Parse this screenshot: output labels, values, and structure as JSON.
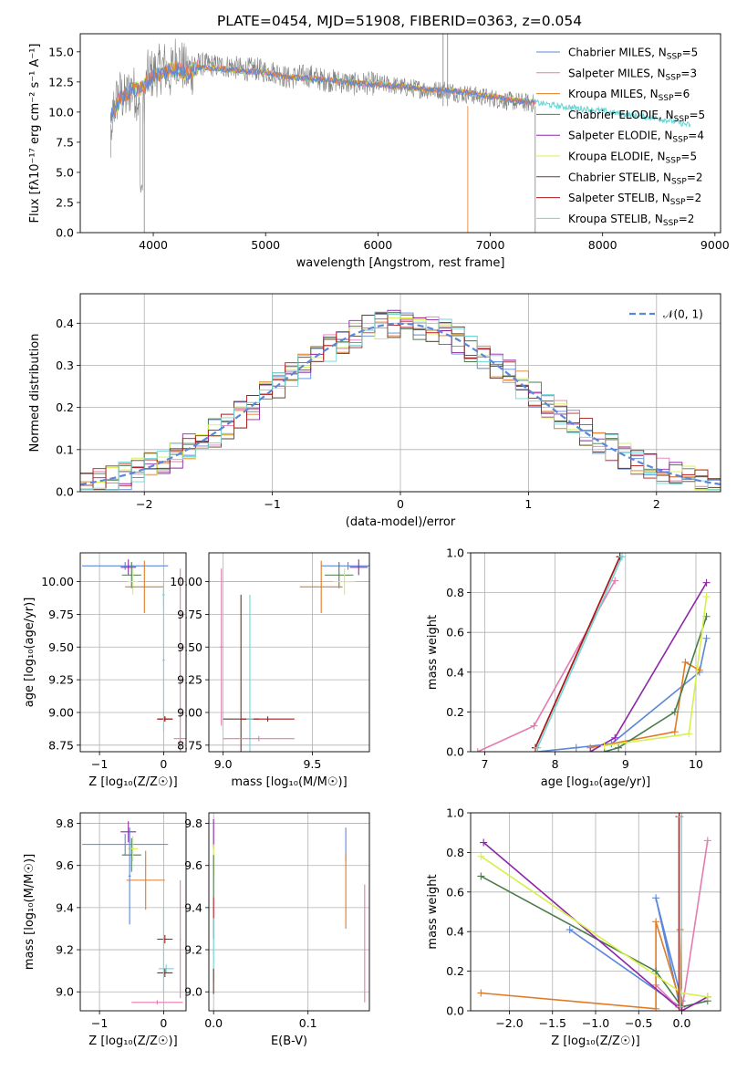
{
  "figure": {
    "title": "PLATE=0454, MJD=51908, FIBERID=0363, z=0.054"
  },
  "colors": {
    "chabrier_miles": "#5b87d9",
    "salpeter_miles": "#e77ab0",
    "kroupa_miles": "#e07b24",
    "chabrier_elodie": "#4c7c4c",
    "salpeter_elodie": "#8e26a8",
    "kroupa_elodie": "#d8f04a",
    "chabrier_stelib": "#5a4038",
    "salpeter_stelib": "#b01818",
    "kroupa_stelib": "#6fd6d6",
    "data": "#808080",
    "gaussian": "#5b87d9"
  },
  "chart_data": [
    {
      "id": "spectrum",
      "type": "line",
      "xlabel": "wavelength [Angstrom, rest frame]",
      "ylabel": "Flux [fλ10⁻¹⁷ erg cm⁻² s⁻¹ A⁻¹]",
      "xlim": [
        3350,
        9050
      ],
      "ylim": [
        0,
        16.5
      ],
      "xticks": [
        "4000",
        "5000",
        "6000",
        "7000",
        "8000",
        "9000"
      ],
      "yticks": [
        "0.0",
        "2.5",
        "5.0",
        "7.5",
        "10.0",
        "12.5",
        "15.0"
      ],
      "legend_position": "right",
      "legend": [
        {
          "label": "Chabrier MILES, N",
          "sub": "SSP",
          "suffix": "=5",
          "color_key": "chabrier_miles"
        },
        {
          "label": "Salpeter MILES, N",
          "sub": "SSP",
          "suffix": "=3",
          "color_key": "salpeter_miles"
        },
        {
          "label": "Kroupa MILES, N",
          "sub": "SSP",
          "suffix": "=6",
          "color_key": "kroupa_miles"
        },
        {
          "label": "Chabrier ELODIE, N",
          "sub": "SSP",
          "suffix": "=5",
          "color_key": "chabrier_elodie"
        },
        {
          "label": "Salpeter ELODIE, N",
          "sub": "SSP",
          "suffix": "=4",
          "color_key": "salpeter_elodie"
        },
        {
          "label": "Kroupa ELODIE, N",
          "sub": "SSP",
          "suffix": "=5",
          "color_key": "kroupa_elodie"
        },
        {
          "label": "Chabrier STELIB, N",
          "sub": "SSP",
          "suffix": "=2",
          "color_key": "chabrier_stelib"
        },
        {
          "label": "Salpeter STELIB, N",
          "sub": "SSP",
          "suffix": "=2",
          "color_key": "salpeter_stelib"
        },
        {
          "label": "Kroupa STELIB, N",
          "sub": "SSP",
          "suffix": "=2",
          "color_key": "kroupa_stelib"
        }
      ],
      "data_spectrum": {
        "x": [
          3620,
          3650,
          3700,
          3750,
          3800,
          3850,
          3900,
          3950,
          4000,
          4050,
          4100,
          4150,
          4200,
          4250,
          4300,
          4350,
          4400,
          4500,
          4600,
          4700,
          4800,
          4900,
          5000,
          5100,
          5200,
          5300,
          5400,
          5500,
          5600,
          5700,
          5800,
          5900,
          6000,
          6100,
          6200,
          6300,
          6400,
          6500,
          6600,
          6700,
          6800,
          6900,
          7000,
          7100,
          7200,
          7300,
          7400
        ],
        "y": [
          9.0,
          10.5,
          11.5,
          11.0,
          12.0,
          11.5,
          10.0,
          13.0,
          13.2,
          13.5,
          13.8,
          13.0,
          14.5,
          14.0,
          13.2,
          13.5,
          14.0,
          13.9,
          13.8,
          13.8,
          13.5,
          13.6,
          13.4,
          13.3,
          12.8,
          13.0,
          13.0,
          12.7,
          12.6,
          12.5,
          12.3,
          12.4,
          12.3,
          12.3,
          12.1,
          12.0,
          11.9,
          11.8,
          11.9,
          11.6,
          11.5,
          11.3,
          11.2,
          11.0,
          10.9,
          10.8,
          10.7
        ]
      },
      "model_curve": {
        "x": [
          3620,
          3700,
          3800,
          3900,
          4000,
          4100,
          4200,
          4300,
          4400,
          4600,
          4800,
          5000,
          5200,
          5400,
          5600,
          5800,
          6000,
          6200,
          6400,
          6600,
          6800,
          7000,
          7200,
          7400,
          7600,
          7800,
          8000,
          8200,
          8400,
          8600,
          8780
        ],
        "y": [
          9.5,
          11.0,
          11.8,
          12.0,
          13.0,
          13.3,
          13.6,
          13.2,
          13.7,
          13.6,
          13.4,
          13.3,
          12.9,
          12.8,
          12.6,
          12.4,
          12.3,
          12.1,
          11.9,
          11.8,
          11.6,
          11.3,
          11.0,
          10.8,
          10.5,
          10.3,
          10.1,
          9.8,
          9.6,
          9.3,
          8.9
        ]
      }
    },
    {
      "id": "residuals",
      "type": "line",
      "xlabel": "(data-model)/error",
      "ylabel": "Normed distribution",
      "xlim": [
        -2.5,
        2.5
      ],
      "ylim": [
        0,
        0.47
      ],
      "xticks": [
        "−2",
        "−1",
        "0",
        "1",
        "2"
      ],
      "yticks": [
        "0.0",
        "0.1",
        "0.2",
        "0.3",
        "0.4"
      ],
      "grid": true,
      "legend": "𝒩(0, 1)",
      "legend_position": "top-right"
    },
    {
      "id": "age_vs_Z",
      "type": "scatter",
      "xlabel": "Z [log₁₀(Z/Z☉)]",
      "ylabel": "age  [log₁₀(age/yr)]",
      "xlim": [
        -1.3,
        0.35
      ],
      "ylim": [
        8.7,
        10.22
      ],
      "xticks": [
        "−1",
        "0"
      ],
      "yticks": [
        "8.75",
        "9.00",
        "9.25",
        "9.50",
        "9.75",
        "10.00"
      ],
      "grid": true,
      "points": [
        {
          "x": -0.6,
          "y": 10.12,
          "xerr": 0.67,
          "yerr": 0.03,
          "color_key": "chabrier_miles"
        },
        {
          "x": -0.55,
          "y": 10.11,
          "xerr": 0.12,
          "yerr": 0.06,
          "color_key": "salpeter_elodie"
        },
        {
          "x": -0.5,
          "y": 10.05,
          "xerr": 0.15,
          "yerr": 0.1,
          "color_key": "chabrier_elodie"
        },
        {
          "x": -0.48,
          "y": 10.0,
          "xerr": 0.08,
          "yerr": 0.1,
          "color_key": "kroupa_elodie"
        },
        {
          "x": -0.3,
          "y": 9.96,
          "xerr": 0.3,
          "yerr": 0.2,
          "color_key": "kroupa_miles"
        },
        {
          "x": 0.0,
          "y": 9.9,
          "xerr": 0.02,
          "yerr": 0.1,
          "color_key": "kroupa_stelib"
        },
        {
          "x": 0.02,
          "y": 8.95,
          "xerr": 0.12,
          "yerr": 0.02,
          "color_key": "chabrier_stelib"
        },
        {
          "x": 0.02,
          "y": 8.95,
          "xerr": 0.12,
          "yerr": 0.02,
          "color_key": "salpeter_stelib"
        },
        {
          "x": 0.26,
          "y": 8.8,
          "xerr": 0.1,
          "yerr": 1.3,
          "color_key": "salpeter_miles"
        },
        {
          "x": 0.0,
          "y": 9.4,
          "xerr": 0.02,
          "yerr": 0.55,
          "color_key": "kroupa_stelib"
        }
      ]
    },
    {
      "id": "age_vs_mass",
      "type": "scatter",
      "xlabel": "mass [log₁₀(M/M☉)]",
      "ylabel": "",
      "xlim": [
        8.92,
        9.82
      ],
      "ylim": [
        8.7,
        10.22
      ],
      "xticks": [
        "9.0",
        "9.5"
      ],
      "yticks": [
        "8.75",
        "9.00",
        "9.25",
        "9.50",
        "9.75",
        "10.00"
      ],
      "grid": true,
      "points": [
        {
          "x": 9.7,
          "y": 10.12,
          "xerr": 0.15,
          "yerr": 0.03,
          "color_key": "chabrier_miles"
        },
        {
          "x": 9.76,
          "y": 10.11,
          "xerr": 0.05,
          "yerr": 0.06,
          "color_key": "salpeter_elodie"
        },
        {
          "x": 9.65,
          "y": 10.05,
          "xerr": 0.08,
          "yerr": 0.1,
          "color_key": "chabrier_elodie"
        },
        {
          "x": 9.68,
          "y": 10.0,
          "xerr": 0.06,
          "yerr": 0.1,
          "color_key": "kroupa_elodie"
        },
        {
          "x": 9.55,
          "y": 9.96,
          "xerr": 0.12,
          "yerr": 0.2,
          "color_key": "kroupa_miles"
        },
        {
          "x": 9.1,
          "y": 8.95,
          "xerr": 0.1,
          "yerr": 0.95,
          "color_key": "chabrier_stelib"
        },
        {
          "x": 9.25,
          "y": 8.95,
          "xerr": 0.15,
          "yerr": 0.02,
          "color_key": "salpeter_stelib"
        },
        {
          "x": 9.15,
          "y": 8.95,
          "xerr": 0.02,
          "yerr": 0.95,
          "color_key": "kroupa_stelib"
        },
        {
          "x": 9.2,
          "y": 8.8,
          "xerr": 0.2,
          "yerr": 0.02,
          "color_key": "salpeter_miles"
        },
        {
          "x": 8.99,
          "y": 9.5,
          "xerr": 0.01,
          "yerr": 0.6,
          "color_key": "salpeter_miles"
        }
      ]
    },
    {
      "id": "mass_weight_vs_age",
      "type": "line",
      "xlabel": "age  [log₁₀(age/yr)]",
      "ylabel": "mass weight",
      "xlim": [
        6.8,
        10.35
      ],
      "ylim": [
        0,
        1.0
      ],
      "xticks": [
        "7",
        "8",
        "9",
        "10"
      ],
      "yticks": [
        "0.0",
        "0.2",
        "0.4",
        "0.6",
        "0.8",
        "1.0"
      ],
      "grid": true,
      "series": [
        {
          "color_key": "chabrier_miles",
          "x": [
            7.75,
            8.3,
            8.8,
            10.05,
            10.15
          ],
          "y": [
            0.0,
            0.02,
            0.04,
            0.4,
            0.57
          ]
        },
        {
          "color_key": "salpeter_miles",
          "x": [
            6.9,
            7.7,
            8.85
          ],
          "y": [
            0.0,
            0.13,
            0.86
          ]
        },
        {
          "color_key": "kroupa_miles",
          "x": [
            8.5,
            9.7,
            9.85,
            10.05
          ],
          "y": [
            0.02,
            0.1,
            0.45,
            0.41
          ]
        },
        {
          "color_key": "chabrier_elodie",
          "x": [
            8.7,
            8.9,
            9.7,
            10.15
          ],
          "y": [
            0.0,
            0.02,
            0.2,
            0.68
          ]
        },
        {
          "color_key": "salpeter_elodie",
          "x": [
            8.5,
            8.85,
            10.15
          ],
          "y": [
            0.0,
            0.07,
            0.85
          ]
        },
        {
          "color_key": "kroupa_elodie",
          "x": [
            8.7,
            9.9,
            10.15
          ],
          "y": [
            0.03,
            0.09,
            0.78
          ]
        },
        {
          "color_key": "chabrier_stelib",
          "x": [
            7.72,
            8.92
          ],
          "y": [
            0.02,
            0.98
          ]
        },
        {
          "color_key": "salpeter_stelib",
          "x": [
            7.72,
            8.92
          ],
          "y": [
            0.02,
            0.98
          ]
        },
        {
          "color_key": "kroupa_stelib",
          "x": [
            7.75,
            8.95
          ],
          "y": [
            0.02,
            0.98
          ]
        }
      ]
    },
    {
      "id": "mass_vs_Z",
      "type": "scatter",
      "xlabel": "Z [log₁₀(Z/Z☉)]",
      "ylabel": "mass [log₁₀(M/M☉)]",
      "xlim": [
        -1.3,
        0.35
      ],
      "ylim": [
        8.91,
        9.85
      ],
      "xticks": [
        "−1",
        "0"
      ],
      "yticks": [
        "9.0",
        "9.2",
        "9.4",
        "9.6",
        "9.8"
      ],
      "grid": true,
      "points": [
        {
          "x": -0.6,
          "y": 9.7,
          "xerr": 0.67,
          "yerr": 0.05,
          "color_key": "chabrier_miles"
        },
        {
          "x": -0.55,
          "y": 9.76,
          "xerr": 0.12,
          "yerr": 0.05,
          "color_key": "salpeter_elodie"
        },
        {
          "x": -0.5,
          "y": 9.65,
          "xerr": 0.15,
          "yerr": 0.08,
          "color_key": "chabrier_elodie"
        },
        {
          "x": -0.48,
          "y": 9.68,
          "xerr": 0.08,
          "yerr": 0.06,
          "color_key": "kroupa_elodie"
        },
        {
          "x": -0.28,
          "y": 9.53,
          "xerr": 0.3,
          "yerr": 0.14,
          "color_key": "kroupa_miles"
        },
        {
          "x": -0.53,
          "y": 9.55,
          "xerr": 0.02,
          "yerr": 0.23,
          "color_key": "chabrier_miles"
        },
        {
          "x": 0.02,
          "y": 9.25,
          "xerr": 0.12,
          "yerr": 0.02,
          "color_key": "salpeter_stelib"
        },
        {
          "x": 0.04,
          "y": 9.11,
          "xerr": 0.12,
          "yerr": 0.02,
          "color_key": "kroupa_stelib"
        },
        {
          "x": 0.02,
          "y": 9.09,
          "xerr": 0.12,
          "yerr": 0.02,
          "color_key": "chabrier_stelib"
        },
        {
          "x": -0.1,
          "y": 8.95,
          "xerr": 0.4,
          "yerr": 0.01,
          "color_key": "salpeter_miles"
        },
        {
          "x": 0.26,
          "y": 9.25,
          "xerr": 0.01,
          "yerr": 0.28,
          "color_key": "salpeter_miles"
        },
        {
          "x": 0.0,
          "y": 9.2,
          "xerr": 0.01,
          "yerr": 0.2,
          "color_key": "kroupa_stelib"
        }
      ]
    },
    {
      "id": "mass_vs_ebv",
      "type": "scatter",
      "xlabel": "E(B-V)",
      "ylabel": "",
      "xlim": [
        -0.005,
        0.165
      ],
      "ylim": [
        8.91,
        9.85
      ],
      "xticks": [
        "0.0",
        "0.1"
      ],
      "yticks": [
        "9.0",
        "9.2",
        "9.4",
        "9.6",
        "9.8"
      ],
      "grid": true,
      "points": [
        {
          "x": 0.0,
          "y": 9.75,
          "yerr": 0.07,
          "color_key": "salpeter_elodie"
        },
        {
          "x": 0.0,
          "y": 9.62,
          "yerr": 0.08,
          "color_key": "kroupa_elodie"
        },
        {
          "x": 0.0,
          "y": 9.55,
          "yerr": 0.1,
          "color_key": "chabrier_elodie"
        },
        {
          "x": 0.0,
          "y": 9.35,
          "yerr": 0.1,
          "color_key": "salpeter_stelib"
        },
        {
          "x": 0.0,
          "y": 9.2,
          "yerr": 0.15,
          "color_key": "kroupa_stelib"
        },
        {
          "x": 0.0,
          "y": 9.05,
          "yerr": 0.06,
          "color_key": "chabrier_stelib"
        },
        {
          "x": 0.14,
          "y": 9.7,
          "yerr": 0.08,
          "color_key": "chabrier_miles"
        },
        {
          "x": 0.14,
          "y": 9.48,
          "yerr": 0.18,
          "color_key": "kroupa_miles"
        },
        {
          "x": 0.16,
          "y": 9.23,
          "yerr": 0.28,
          "color_key": "salpeter_miles"
        }
      ]
    },
    {
      "id": "mass_weight_vs_Z",
      "type": "line",
      "xlabel": "Z [log₁₀(Z/Z☉)]",
      "ylabel": "mass weight",
      "xlim": [
        -2.45,
        0.45
      ],
      "ylim": [
        0,
        1.0
      ],
      "xticks": [
        "−2.0",
        "−1.5",
        "−1.0",
        "−0.5",
        "0.0"
      ],
      "yticks": [
        "0.0",
        "0.2",
        "0.4",
        "0.6",
        "0.8",
        "1.0"
      ],
      "grid": true,
      "series": [
        {
          "color_key": "chabrier_miles",
          "x": [
            -1.3,
            -0.02,
            -0.3,
            0.0
          ],
          "y": [
            0.41,
            0.02,
            0.57,
            0.05
          ]
        },
        {
          "color_key": "salpeter_miles",
          "x": [
            -0.3,
            0.0,
            0.3
          ],
          "y": [
            0.13,
            0.0,
            0.86
          ]
        },
        {
          "color_key": "kroupa_miles",
          "x": [
            -2.33,
            -0.3,
            -0.3,
            0.0,
            -0.02
          ],
          "y": [
            0.09,
            0.01,
            0.45,
            0.02,
            0.41
          ]
        },
        {
          "color_key": "chabrier_elodie",
          "x": [
            -2.33,
            -0.3,
            0.0,
            0.3
          ],
          "y": [
            0.68,
            0.2,
            0.02,
            0.05
          ]
        },
        {
          "color_key": "salpeter_elodie",
          "x": [
            -2.3,
            0.0,
            0.3
          ],
          "y": [
            0.85,
            0.0,
            0.07
          ]
        },
        {
          "color_key": "kroupa_elodie",
          "x": [
            -2.33,
            0.0,
            0.3
          ],
          "y": [
            0.78,
            0.09,
            0.07
          ]
        },
        {
          "color_key": "chabrier_stelib",
          "x": [
            -0.03,
            -0.03
          ],
          "y": [
            0.02,
            0.98
          ]
        },
        {
          "color_key": "salpeter_stelib",
          "x": [
            -0.03,
            -0.03
          ],
          "y": [
            0.02,
            0.98
          ]
        },
        {
          "color_key": "kroupa_stelib",
          "x": [
            -0.02,
            -0.02
          ],
          "y": [
            0.02,
            0.98
          ]
        }
      ]
    }
  ]
}
